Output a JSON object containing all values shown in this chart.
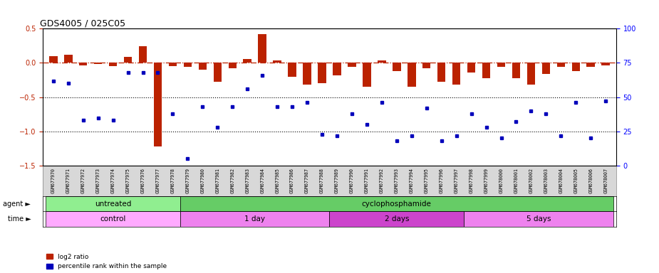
{
  "title": "GDS4005 / 025C05",
  "samples": [
    "GSM677970",
    "GSM677971",
    "GSM677972",
    "GSM677973",
    "GSM677974",
    "GSM677975",
    "GSM677976",
    "GSM677977",
    "GSM677978",
    "GSM677979",
    "GSM677980",
    "GSM677981",
    "GSM677982",
    "GSM677983",
    "GSM677984",
    "GSM677985",
    "GSM677986",
    "GSM677987",
    "GSM677988",
    "GSM677989",
    "GSM677990",
    "GSM677991",
    "GSM677992",
    "GSM677993",
    "GSM677994",
    "GSM677995",
    "GSM677996",
    "GSM677997",
    "GSM677998",
    "GSM677999",
    "GSM678000",
    "GSM678001",
    "GSM678002",
    "GSM678003",
    "GSM678004",
    "GSM678005",
    "GSM678006",
    "GSM678007"
  ],
  "log2_ratio": [
    0.1,
    0.12,
    -0.04,
    -0.02,
    -0.05,
    0.09,
    0.24,
    -1.22,
    -0.05,
    -0.06,
    -0.1,
    -0.28,
    -0.08,
    0.06,
    0.42,
    0.04,
    -0.2,
    -0.32,
    -0.3,
    -0.18,
    -0.06,
    -0.35,
    0.04,
    -0.12,
    -0.35,
    -0.08,
    -0.28,
    -0.32,
    -0.14,
    -0.22,
    -0.06,
    -0.22,
    -0.32,
    -0.16,
    -0.06,
    -0.12,
    -0.06,
    -0.04
  ],
  "percentile": [
    62,
    60,
    33,
    35,
    33,
    68,
    68,
    68,
    38,
    5,
    43,
    28,
    43,
    56,
    66,
    43,
    43,
    46,
    23,
    22,
    38,
    30,
    46,
    18,
    22,
    42,
    18,
    22,
    38,
    28,
    20,
    32,
    40,
    38,
    22,
    46,
    20,
    47
  ],
  "agent_groups": [
    {
      "label": "untreated",
      "start": 0,
      "end": 9,
      "color": "#90EE90"
    },
    {
      "label": "cyclophosphamide",
      "start": 9,
      "end": 38,
      "color": "#66CC66"
    }
  ],
  "time_groups": [
    {
      "label": "control",
      "start": 0,
      "end": 9,
      "color": "#FFAAFF"
    },
    {
      "label": "1 day",
      "start": 9,
      "end": 19,
      "color": "#EE82EE"
    },
    {
      "label": "2 days",
      "start": 19,
      "end": 28,
      "color": "#CC44CC"
    },
    {
      "label": "5 days",
      "start": 28,
      "end": 38,
      "color": "#EE82EE"
    }
  ],
  "ylim_left": [
    -1.5,
    0.5
  ],
  "ylim_right": [
    0,
    100
  ],
  "bar_color": "#BB2200",
  "scatter_color": "#0000BB",
  "hline_color": "#BB2200",
  "dotted_vals": [
    -0.5,
    -1.0
  ],
  "right_ticks": [
    0,
    25,
    50,
    75,
    100
  ],
  "left_ticks": [
    -1.5,
    -1.0,
    -0.5,
    0.0,
    0.5
  ],
  "xlabel_bg": "#D8D8D8"
}
